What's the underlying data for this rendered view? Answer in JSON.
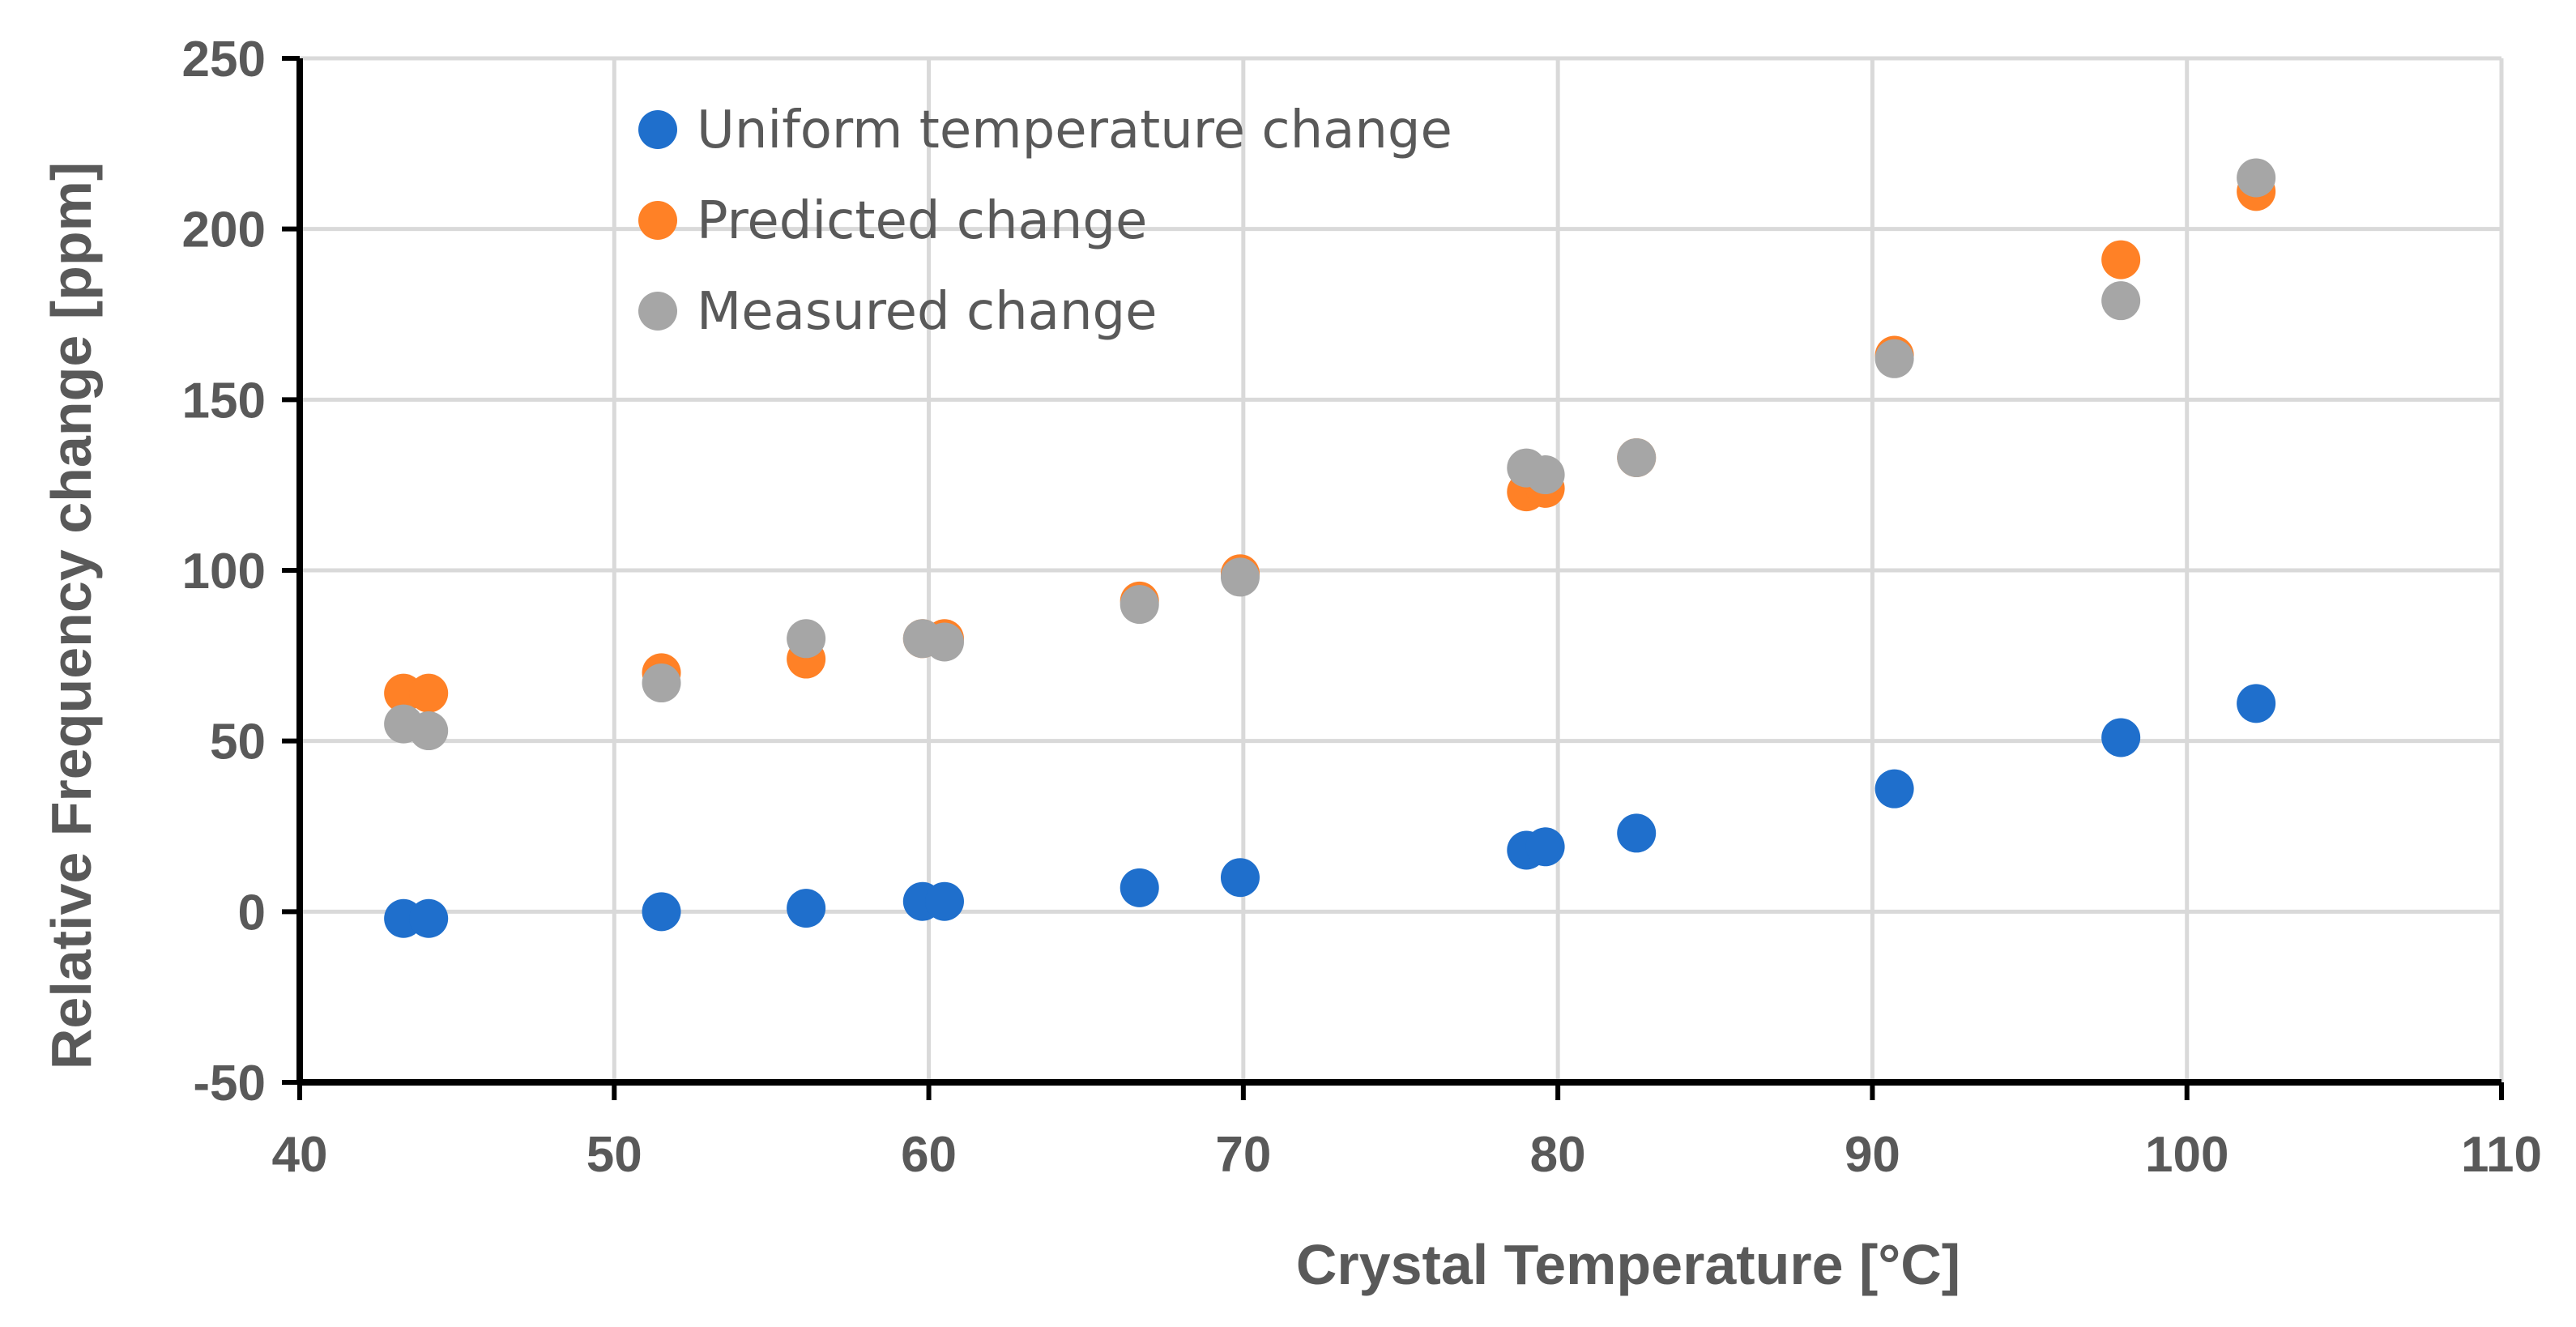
{
  "chart_data": {
    "type": "scatter",
    "title": "",
    "xlabel": "Crystal Temperature [°C]",
    "ylabel": "Relative Frequency change  [ppm]",
    "xlim": [
      40,
      110
    ],
    "ylim": [
      -50,
      250
    ],
    "xticks": [
      40,
      50,
      60,
      70,
      80,
      90,
      100,
      110
    ],
    "yticks": [
      -50,
      0,
      50,
      100,
      150,
      200,
      250
    ],
    "grid": true,
    "legend_position": "top-left inside",
    "series": [
      {
        "name": "Uniform temperature change",
        "color": "#1F6FCC",
        "points": [
          [
            43.3,
            -2
          ],
          [
            44.1,
            -2
          ],
          [
            51.5,
            0
          ],
          [
            56.1,
            1
          ],
          [
            59.8,
            3
          ],
          [
            60.5,
            3
          ],
          [
            66.7,
            7
          ],
          [
            69.9,
            10
          ],
          [
            79.0,
            18
          ],
          [
            79.6,
            19
          ],
          [
            82.5,
            23
          ],
          [
            90.7,
            36
          ],
          [
            97.9,
            51
          ],
          [
            102.2,
            61
          ]
        ]
      },
      {
        "name": "Predicted change",
        "color": "#FF8126",
        "points": [
          [
            43.3,
            64
          ],
          [
            44.1,
            64
          ],
          [
            51.5,
            70
          ],
          [
            56.1,
            74
          ],
          [
            59.8,
            80
          ],
          [
            60.5,
            80
          ],
          [
            66.7,
            91
          ],
          [
            69.9,
            99
          ],
          [
            79.0,
            123
          ],
          [
            79.6,
            124
          ],
          [
            82.5,
            133
          ],
          [
            90.7,
            163
          ],
          [
            97.9,
            191
          ],
          [
            102.2,
            211
          ]
        ]
      },
      {
        "name": "Measured change",
        "color": "#A6A6A6",
        "points": [
          [
            43.3,
            55
          ],
          [
            44.1,
            53
          ],
          [
            51.5,
            67
          ],
          [
            56.1,
            80
          ],
          [
            59.8,
            80
          ],
          [
            60.5,
            79
          ],
          [
            66.7,
            90
          ],
          [
            69.9,
            98
          ],
          [
            79.0,
            130
          ],
          [
            79.6,
            128
          ],
          [
            82.5,
            133
          ],
          [
            90.7,
            162
          ],
          [
            97.9,
            179
          ],
          [
            102.2,
            215
          ]
        ]
      }
    ]
  }
}
